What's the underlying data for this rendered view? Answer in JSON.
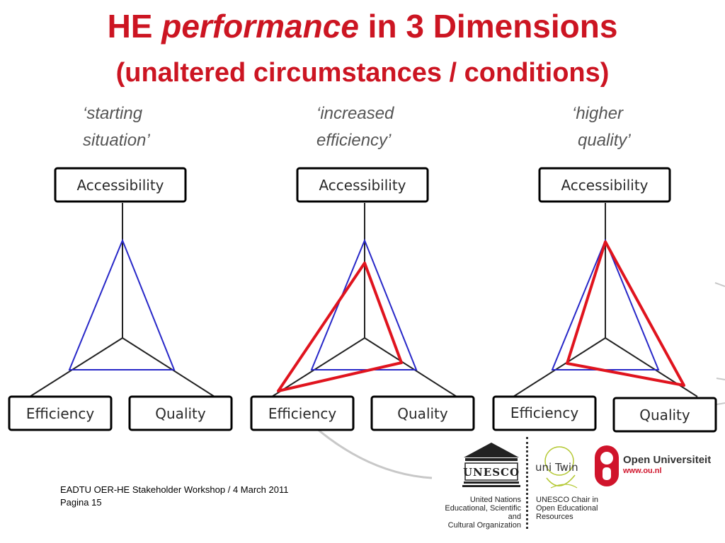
{
  "title": {
    "part1": "HE ",
    "part2": "performance",
    "part3": " in 3 Dimensions",
    "subtitle": "(unaltered circumstances / conditions)"
  },
  "scenarios": [
    {
      "caption_line1": "‘starting",
      "caption_line2": "situation’"
    },
    {
      "caption_line1": "‘increased",
      "caption_line2": "efficiency’"
    },
    {
      "caption_line1": "‘higher",
      "caption_line2": "quality’"
    }
  ],
  "nodes": {
    "accessibility": "Accessibility",
    "efficiency": "Efficiency",
    "quality": "Quality"
  },
  "colors": {
    "title": "#cc1522",
    "baseline_triangle": "#2828c8",
    "changed_triangle": "#e0141e",
    "axes": "#222222"
  },
  "footer": {
    "event": "EADTU OER-HE Stakeholder Workshop / 4 March 2011",
    "page": "Pagina 15"
  },
  "logos": {
    "unesco_mark": "UNESCO",
    "unesco_caption": [
      "United Nations",
      "Educational, Scientific and",
      "Cultural Organization"
    ],
    "unitwin_mark": "uni Twin",
    "unitwin_caption": [
      "UNESCO Chair in",
      "Open Educational",
      "Resources"
    ],
    "ou_name": "Open Universiteit",
    "ou_url": "www.ou.nl"
  }
}
